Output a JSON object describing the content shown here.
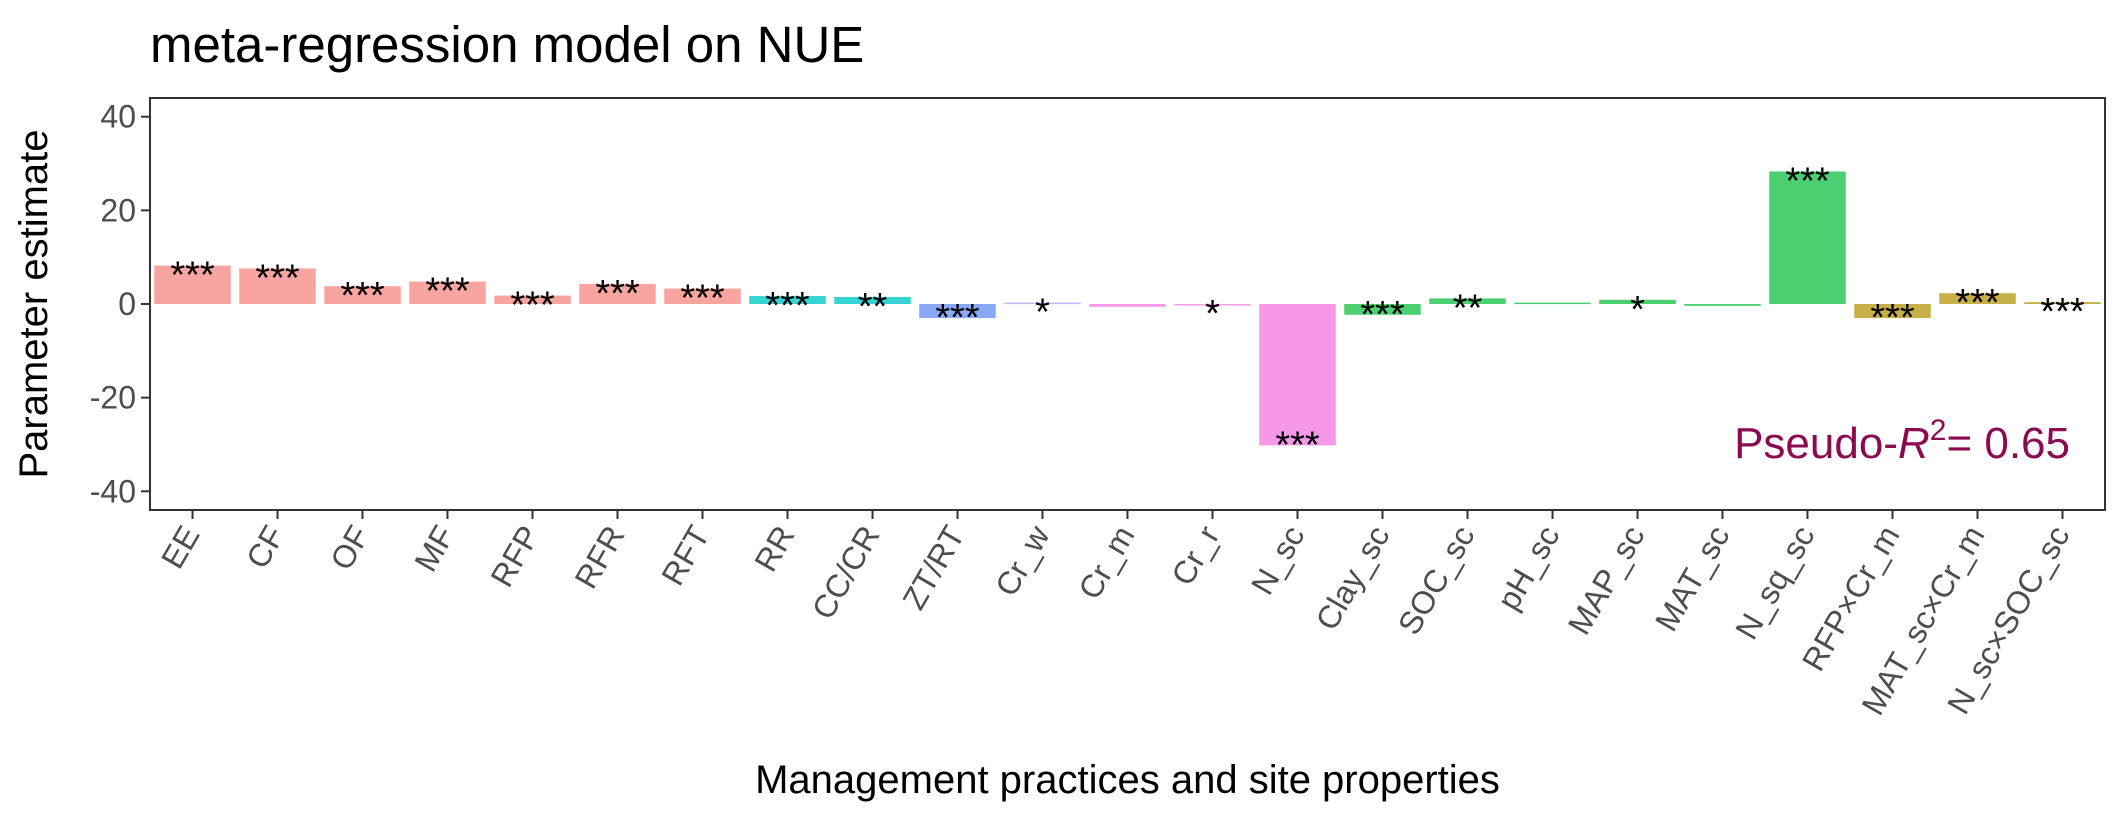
{
  "chart_data": {
    "type": "bar",
    "title": "meta-regression model on NUE",
    "xlabel": "Management practices and site properties",
    "ylabel": "Parameter estimate",
    "ylim": [
      -44,
      44
    ],
    "yticks": [
      40,
      20,
      0,
      -20,
      -40
    ],
    "ytick_labels": [
      "40",
      "20",
      "0",
      "-20",
      "-40"
    ],
    "grid": false,
    "legend": "none",
    "categories": [
      "EE",
      "CF",
      "OF",
      "MF",
      "RFP",
      "RFR",
      "RFT",
      "RR",
      "CC/CR",
      "ZT/RT",
      "Cr_w",
      "Cr_m",
      "Cr_r",
      "N_sc",
      "Clay_sc",
      "SOC_sc",
      "pH_sc",
      "MAP_sc",
      "MAT_sc",
      "N_sq_sc",
      "RFP×Cr_m",
      "MAT_sc×Cr_m",
      "N_sc×SOC_sc"
    ],
    "values": [
      8.2,
      7.6,
      3.8,
      4.8,
      1.8,
      4.3,
      3.3,
      1.7,
      1.5,
      -3.0,
      0.3,
      -0.6,
      0.0,
      -30.2,
      -2.3,
      1.2,
      0.3,
      0.9,
      -0.4,
      28.3,
      -3.0,
      2.3,
      0.4
    ],
    "significance": [
      "***",
      "***",
      "***",
      "***",
      "***",
      "***",
      "***",
      "***",
      "**",
      "***",
      "*",
      "",
      "*",
      "***",
      "***",
      "**",
      "",
      "*",
      "",
      "***",
      "***",
      "***",
      "***"
    ],
    "bar_colors": [
      "#F8A5A1",
      "#F8A5A1",
      "#F8A5A1",
      "#F8A5A1",
      "#F8A5A1",
      "#F8A5A1",
      "#F8A5A1",
      "#35D4D3",
      "#35D4D3",
      "#89A9F8",
      "#C3B6FA",
      "#F79AEA",
      "#F79AEA",
      "#F797E8",
      "#4CCF70",
      "#4CCF70",
      "#4CCF70",
      "#4CCF70",
      "#4CCF70",
      "#4CCF70",
      "#C8B048",
      "#C8B048",
      "#C8B048"
    ],
    "annotation": {
      "prefix": "Pseudo-",
      "var": "R",
      "sup": "2",
      "suffix": "= 0.65",
      "color": "#8B0A50",
      "position": "bottom-right"
    }
  }
}
